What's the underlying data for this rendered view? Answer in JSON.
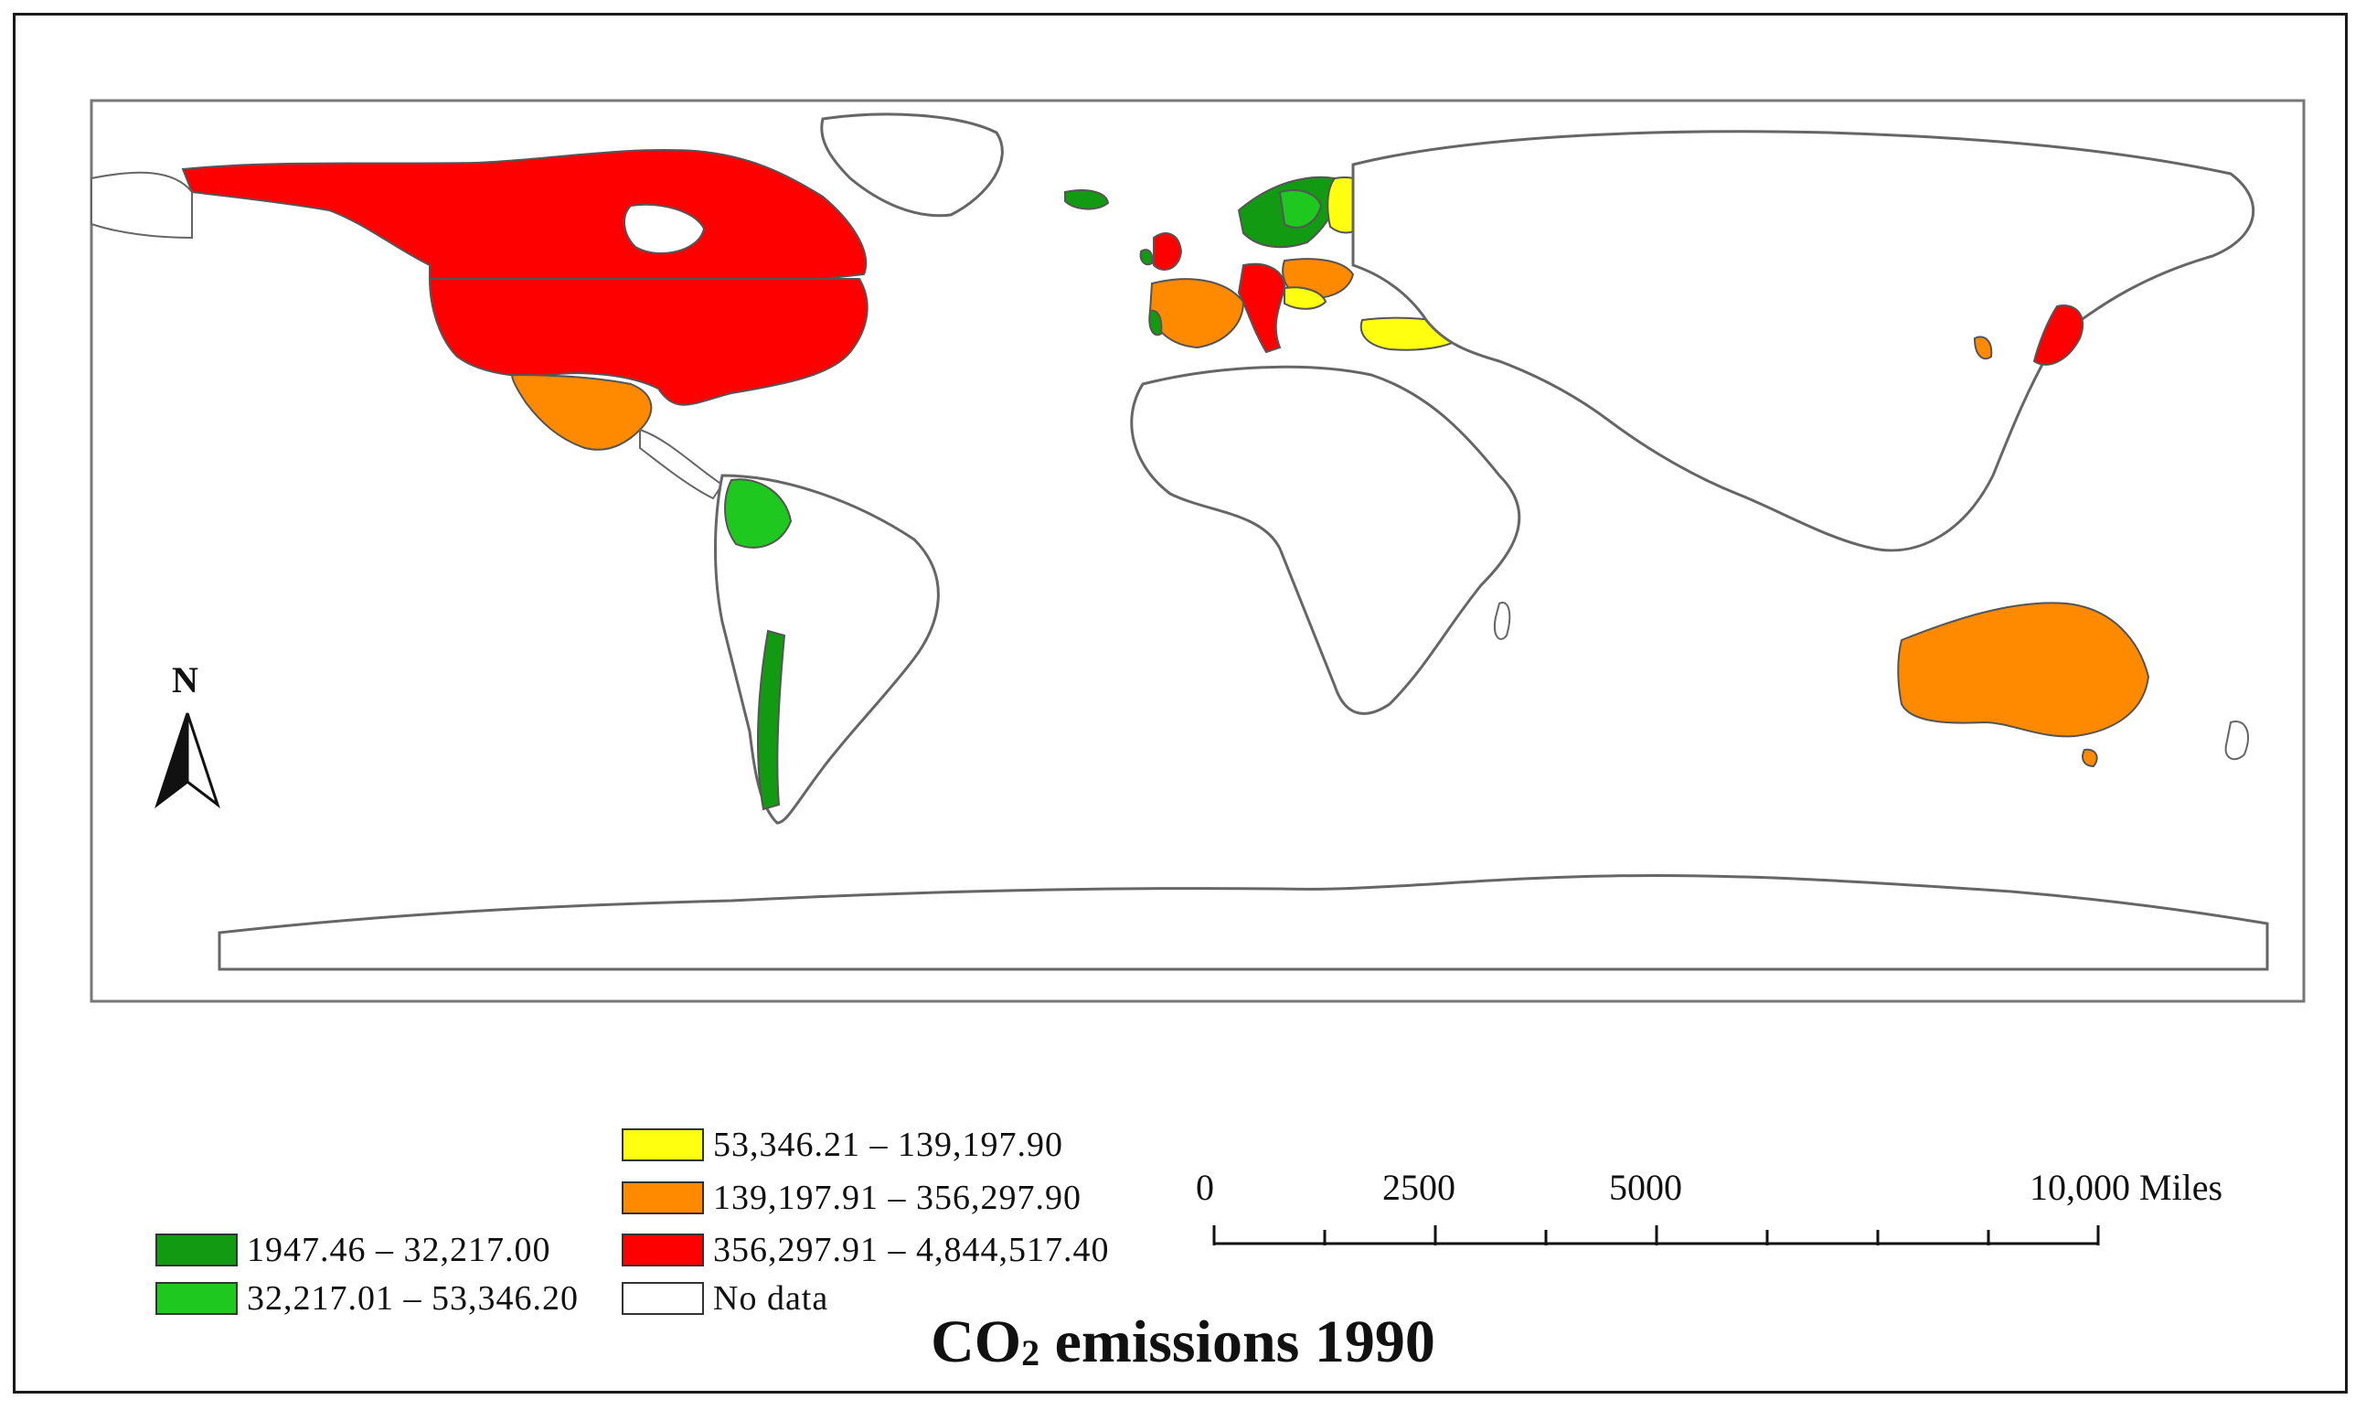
{
  "map": {
    "title_prefix": "CO",
    "title_sub": "2",
    "title_suffix": " emissions 1990",
    "north_label": "N",
    "classes": [
      {
        "label": "1947.46 – 32,217.00",
        "color": "#139a13"
      },
      {
        "label": "32,217.01 – 53,346.20",
        "color": "#1ec81e"
      },
      {
        "label": "53,346.21 – 139,197.90",
        "color": "#ffff10"
      },
      {
        "label": "139,197.91 – 356,297.90",
        "color": "#ff8a00"
      },
      {
        "label": "356,297.91 – 4,844,517.40",
        "color": "#ff0000"
      },
      {
        "label": "No data",
        "color": "#ffffff"
      }
    ],
    "scale": {
      "unit": "Miles",
      "labels": [
        "0",
        "2500",
        "5000",
        "10,000 Miles"
      ]
    },
    "colors": {
      "border": "#555555",
      "land_nodata": "#ffffff",
      "outline": "#666666"
    }
  }
}
